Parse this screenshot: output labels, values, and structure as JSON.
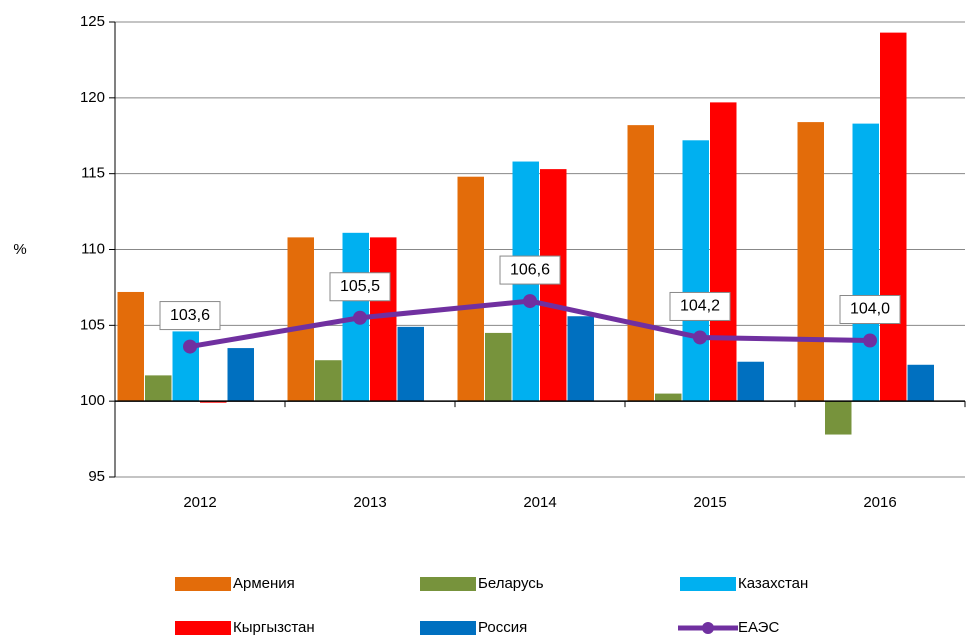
{
  "chart_data": {
    "type": "bar",
    "y_label": "%",
    "categories": [
      "2012",
      "2013",
      "2014",
      "2015",
      "2016"
    ],
    "series": [
      {
        "name": "Армения",
        "color": "#e36c0a",
        "values": [
          107.2,
          110.8,
          114.8,
          118.2,
          118.4
        ]
      },
      {
        "name": "Беларусь",
        "color": "#77933c",
        "values": [
          101.7,
          102.7,
          104.5,
          100.5,
          97.8
        ]
      },
      {
        "name": "Казахстан",
        "color": "#00b0f0",
        "values": [
          104.6,
          111.1,
          115.8,
          117.2,
          118.3
        ]
      },
      {
        "name": "Кыргызстан",
        "color": "#ff0000",
        "values": [
          99.9,
          110.8,
          115.3,
          119.7,
          124.3
        ]
      },
      {
        "name": "Россия",
        "color": "#0070c0",
        "values": [
          103.5,
          104.9,
          105.6,
          102.6,
          102.4
        ]
      },
      {
        "name": "ЕАЭС",
        "type": "line",
        "color": "#7030a0",
        "values": [
          103.6,
          105.5,
          106.6,
          104.2,
          104.0
        ],
        "value_labels": [
          "103,6",
          "105,5",
          "106,6",
          "104,2",
          "104,0"
        ]
      }
    ],
    "ylim": [
      95,
      125
    ],
    "yticks": [
      95,
      100,
      105,
      110,
      115,
      120,
      125
    ],
    "x_axis_at": 100,
    "grid": true
  }
}
